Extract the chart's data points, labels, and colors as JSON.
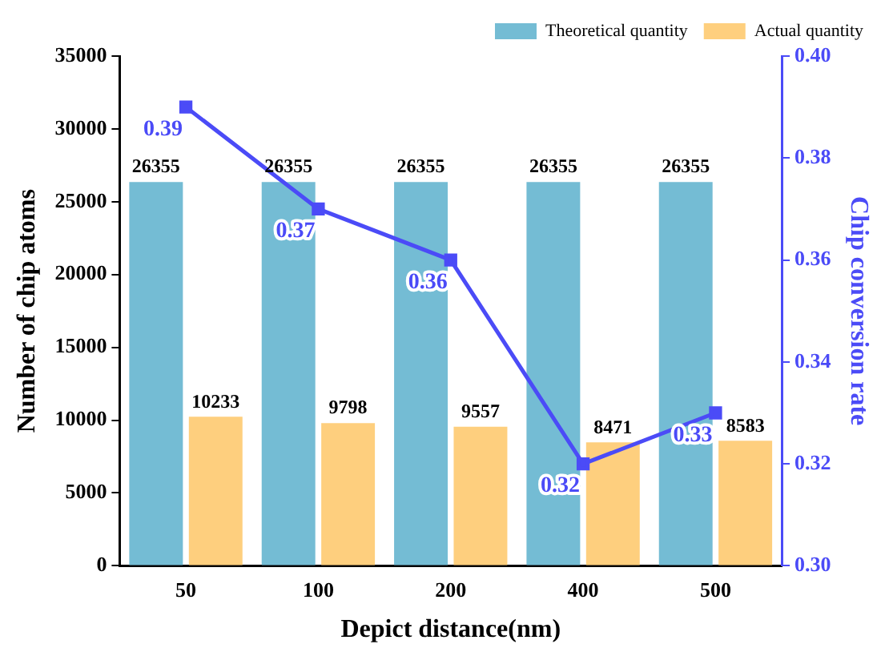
{
  "chart_data": {
    "type": "bar",
    "xlabel": "Depict distance(nm)",
    "ylabel": "Number of chip atoms",
    "y2label": "Chip conversion rate",
    "categories": [
      "50",
      "100",
      "200",
      "400",
      "500"
    ],
    "series": [
      {
        "name": "Theoretical quantity",
        "color": "#74bcd4",
        "values": [
          26355,
          26355,
          26355,
          26355,
          26355
        ]
      },
      {
        "name": "Actual quantity",
        "color": "#fecf7e",
        "values": [
          10233,
          9798,
          9557,
          8471,
          8583
        ]
      },
      {
        "type": "line",
        "axis": "y2",
        "color": "#4b4bf7",
        "values": [
          0.39,
          0.37,
          0.36,
          0.32,
          0.33
        ]
      }
    ],
    "ylim": [
      0,
      35000
    ],
    "yticks": [
      0,
      5000,
      10000,
      15000,
      20000,
      25000,
      30000,
      35000
    ],
    "y2lim": [
      0.3,
      0.4
    ],
    "y2ticks": [
      {
        "value": 0.3,
        "label": "0.30"
      },
      0.32,
      0.34,
      0.36,
      0.38,
      {
        "value": 0.4,
        "label": "0.40"
      }
    ],
    "data_labels": true,
    "legend": "top right",
    "marker": "square",
    "grid": false
  }
}
